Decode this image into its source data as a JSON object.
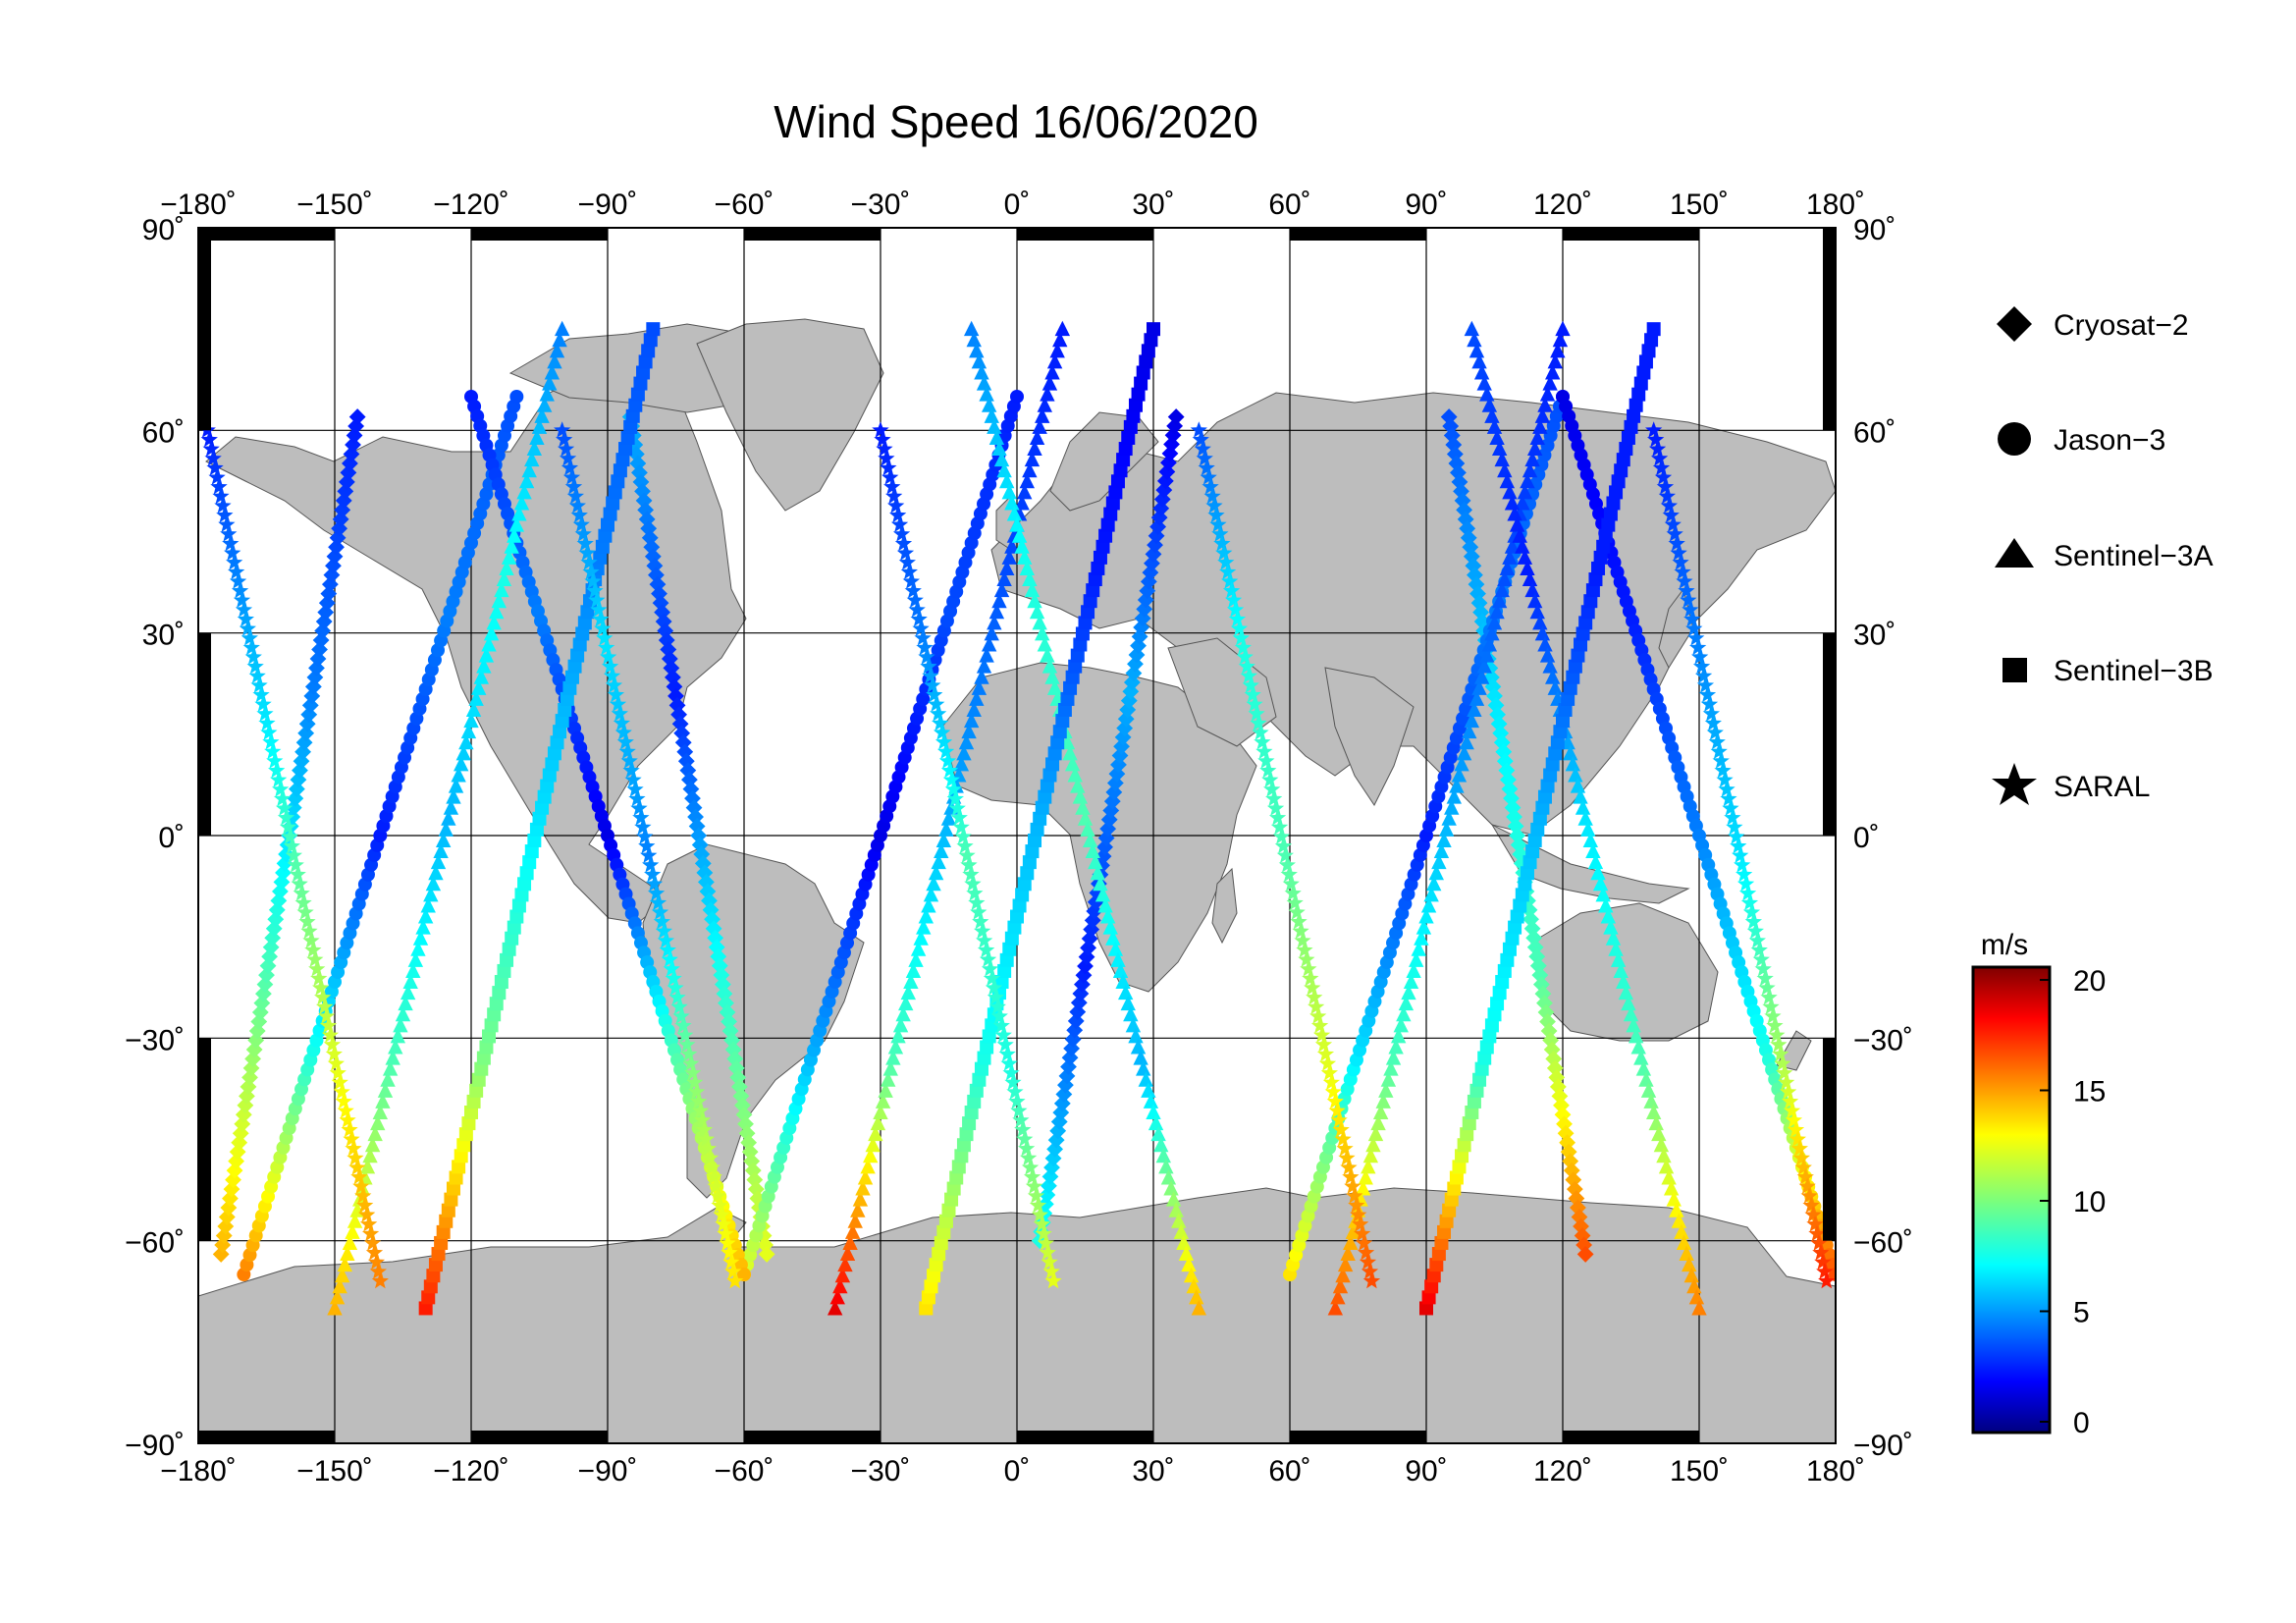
{
  "title": "Wind Speed 16/06/2020",
  "map": {
    "projection": "equirectangular",
    "lon_range": [
      -180,
      180
    ],
    "lat_range": [
      -90,
      90
    ],
    "lon_ticks": [
      "−180˚",
      "−150˚",
      "−120˚",
      "−90˚",
      "−60˚",
      "−30˚",
      "0˚",
      "30˚",
      "60˚",
      "90˚",
      "120˚",
      "150˚",
      "180˚"
    ],
    "lat_ticks_left": [
      "90˚",
      "60˚",
      "30˚",
      "0˚",
      "−30˚",
      "−60˚",
      "−90˚"
    ],
    "lat_ticks_right": [
      "90˚",
      "60˚",
      "30˚",
      "0˚",
      "−30˚",
      "−60˚",
      "−90˚"
    ],
    "grid": true,
    "land_color": "#bdbdbd",
    "ocean_color": "#ffffff"
  },
  "legend": {
    "placement": "right",
    "items": [
      {
        "label": "Cryosat−2",
        "marker": "diamond"
      },
      {
        "label": "Jason−3",
        "marker": "circle"
      },
      {
        "label": "Sentinel−3A",
        "marker": "triangle"
      },
      {
        "label": "Sentinel−3B",
        "marker": "square"
      },
      {
        "label": "SARAL",
        "marker": "star"
      }
    ]
  },
  "colorbar": {
    "unit": "m/s",
    "range": [
      0,
      20
    ],
    "ticks": [
      "20",
      "15",
      "10",
      "5",
      "0"
    ],
    "colormap": "jet"
  },
  "chart_data": {
    "type": "scatter",
    "title": "Wind Speed 16/06/2020",
    "xlabel": "",
    "ylabel": "",
    "xlim": [
      -180,
      180
    ],
    "ylim": [
      -90,
      90
    ],
    "color_variable": "wind speed (m/s)",
    "color_range": [
      0,
      20
    ],
    "series": [
      {
        "name": "Cryosat−2",
        "marker": "diamond",
        "tracks": [
          {
            "lon": [
              -85,
              -55
            ],
            "lat": [
              62,
              -62
            ],
            "v": [
              6,
              3,
              8,
              12
            ]
          },
          {
            "lon": [
              5,
              35
            ],
            "lat": [
              -60,
              62
            ],
            "v": [
              8,
              3,
              6,
              2
            ]
          },
          {
            "lon": [
              95,
              125
            ],
            "lat": [
              62,
              -62
            ],
            "v": [
              4,
              7,
              9,
              16
            ]
          },
          {
            "lon": [
              -175,
              -145
            ],
            "lat": [
              -62,
              62
            ],
            "v": [
              14,
              9,
              5,
              3
            ]
          }
        ]
      },
      {
        "name": "Jason−3",
        "marker": "circle",
        "tracks": [
          {
            "lon": [
              -170,
              -110
            ],
            "lat": [
              -65,
              65
            ],
            "v": [
              15,
              8,
              3,
              5,
              4
            ]
          },
          {
            "lon": [
              -60,
              0
            ],
            "lat": [
              -65,
              65
            ],
            "v": [
              12,
              6,
              2,
              4,
              3
            ]
          },
          {
            "lon": [
              60,
              120
            ],
            "lat": [
              -65,
              65
            ],
            "v": [
              13,
              7,
              3,
              5,
              4
            ]
          },
          {
            "lon": [
              -120,
              -60
            ],
            "lat": [
              65,
              -65
            ],
            "v": [
              3,
              5,
              2,
              9,
              14
            ]
          },
          {
            "lon": [
              120,
              180
            ],
            "lat": [
              65,
              -65
            ],
            "v": [
              2,
              3,
              5,
              8,
              16
            ]
          }
        ]
      },
      {
        "name": "Sentinel−3A",
        "marker": "triangle",
        "tracks": [
          {
            "lon": [
              -150,
              -100
            ],
            "lat": [
              -70,
              75
            ],
            "v": [
              14,
              9,
              6,
              8,
              5
            ]
          },
          {
            "lon": [
              -40,
              10
            ],
            "lat": [
              -70,
              75
            ],
            "v": [
              18,
              9,
              6,
              4,
              3
            ]
          },
          {
            "lon": [
              70,
              120
            ],
            "lat": [
              -70,
              75
            ],
            "v": [
              16,
              9,
              6,
              4,
              3
            ]
          },
          {
            "lon": [
              -10,
              40
            ],
            "lat": [
              75,
              -70
            ],
            "v": [
              5,
              8,
              9,
              6,
              14
            ]
          },
          {
            "lon": [
              100,
              150
            ],
            "lat": [
              75,
              -70
            ],
            "v": [
              4,
              3,
              7,
              9,
              15
            ]
          }
        ]
      },
      {
        "name": "Sentinel−3B",
        "marker": "square",
        "tracks": [
          {
            "lon": [
              -130,
              -80
            ],
            "lat": [
              -70,
              75
            ],
            "v": [
              17,
              10,
              7,
              5,
              4
            ]
          },
          {
            "lon": [
              -20,
              30
            ],
            "lat": [
              -70,
              75
            ],
            "v": [
              13,
              8,
              6,
              3,
              2
            ]
          },
          {
            "lon": [
              90,
              140
            ],
            "lat": [
              -70,
              75
            ],
            "v": [
              18,
              8,
              6,
              3,
              3
            ]
          }
        ]
      },
      {
        "name": "SARAL",
        "marker": "star",
        "tracks": [
          {
            "lon": [
              -178,
              -140
            ],
            "lat": [
              60,
              -66
            ],
            "v": [
              3,
              6,
              9,
              12,
              15
            ]
          },
          {
            "lon": [
              -100,
              -62
            ],
            "lat": [
              60,
              -66
            ],
            "v": [
              4,
              7,
              5,
              10,
              13
            ]
          },
          {
            "lon": [
              -30,
              8
            ],
            "lat": [
              60,
              -66
            ],
            "v": [
              3,
              5,
              9,
              8,
              12
            ]
          },
          {
            "lon": [
              40,
              78
            ],
            "lat": [
              60,
              -66
            ],
            "v": [
              4,
              8,
              9,
              12,
              16
            ]
          },
          {
            "lon": [
              140,
              178
            ],
            "lat": [
              60,
              -66
            ],
            "v": [
              3,
              5,
              7,
              11,
              17
            ]
          }
        ]
      }
    ]
  }
}
